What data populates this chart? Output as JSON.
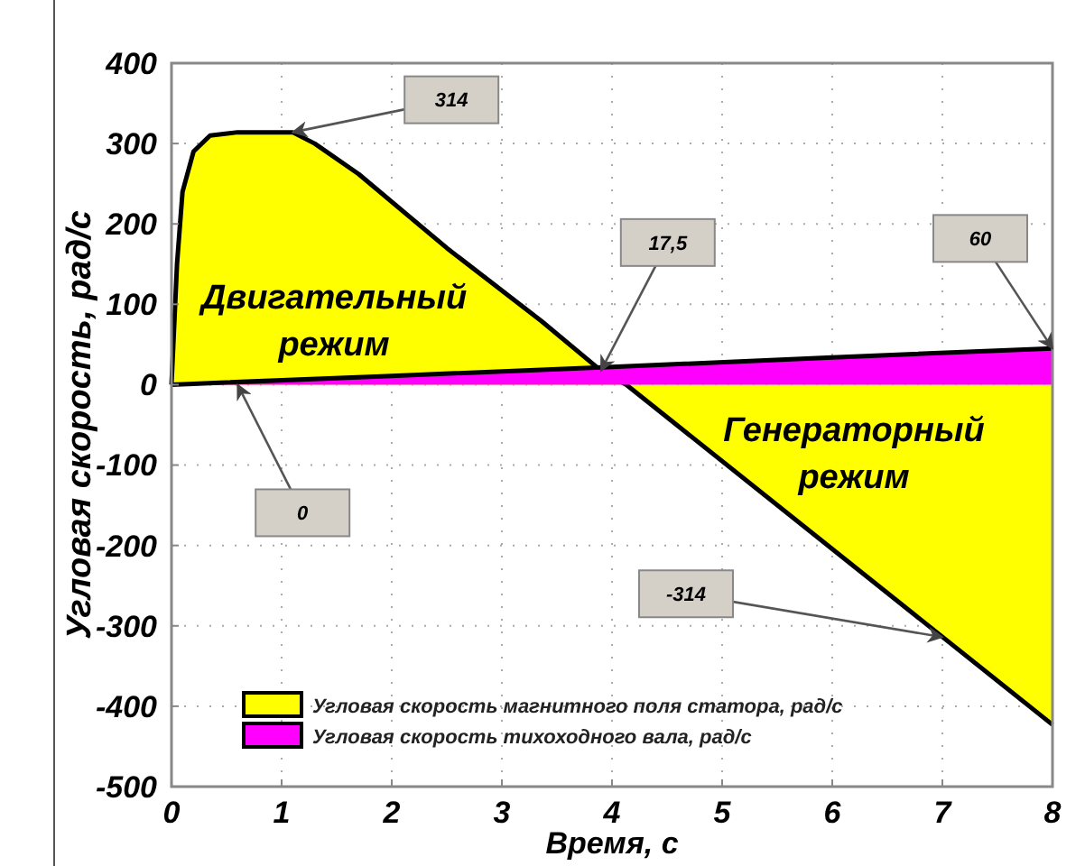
{
  "chart_data": {
    "type": "area",
    "xlabel": "Время, с",
    "ylabel": "Угловая скорость, рад/с",
    "xlim": [
      0,
      8
    ],
    "ylim": [
      -500,
      400
    ],
    "xticks": [
      0,
      1,
      2,
      3,
      4,
      5,
      6,
      7,
      8
    ],
    "yticks": [
      -500,
      -400,
      -300,
      -200,
      -100,
      0,
      100,
      200,
      300,
      400
    ],
    "grid": true,
    "legend": "bottom left",
    "series": [
      {
        "name": "Угловая скорость магнитного поля статора, рад/с",
        "color": "#ffff00",
        "x": [
          0,
          0.05,
          0.1,
          0.2,
          0.35,
          0.6,
          1.1,
          1.3,
          1.7,
          2.5,
          3.36,
          3.9,
          4.13,
          8
        ],
        "values": [
          0,
          150,
          240,
          290,
          310,
          314,
          314,
          300,
          262,
          170,
          79,
          17.5,
          0,
          -423
        ]
      },
      {
        "name": "Угловая скорость тихоходного вала, рад/с",
        "color": "#ff00ff",
        "x": [
          0,
          2,
          4,
          6,
          8
        ],
        "values": [
          0,
          11,
          22,
          34,
          45
        ]
      }
    ],
    "annotations": [
      "Двигательный\nрежим",
      "Генераторный\nрежим",
      {
        "text": "314",
        "x": 1.1,
        "y": 314
      },
      {
        "text": "17,5",
        "x": 3.9,
        "y": 17.5
      },
      {
        "text": "60",
        "x": 8,
        "y": 45
      },
      {
        "text": "0",
        "x": 0.6,
        "y": 0
      },
      {
        "text": "-314",
        "x": 7,
        "y": -314
      }
    ]
  }
}
